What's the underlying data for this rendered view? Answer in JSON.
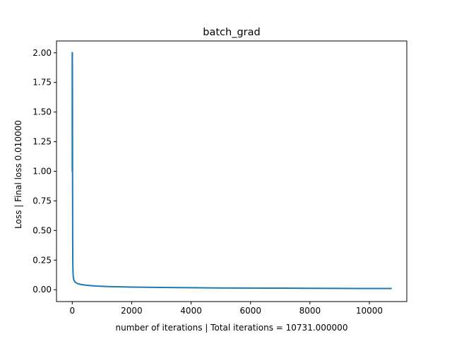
{
  "chart_data": {
    "type": "line",
    "title": "batch_grad",
    "xlabel": "number of iterations | Total iterations = 10731.000000",
    "ylabel": "Loss | Final loss 0.010000",
    "xlim": [
      -530,
      11260
    ],
    "ylim": [
      -0.1,
      2.1
    ],
    "xticks": [
      0,
      2000,
      4000,
      6000,
      8000,
      10000
    ],
    "xtick_labels": [
      "0",
      "2000",
      "4000",
      "6000",
      "8000",
      "10000"
    ],
    "yticks": [
      0.0,
      0.25,
      0.5,
      0.75,
      1.0,
      1.25,
      1.5,
      1.75,
      2.0
    ],
    "ytick_labels": [
      "0.00",
      "0.25",
      "0.50",
      "0.75",
      "1.00",
      "1.25",
      "1.50",
      "1.75",
      "2.00"
    ],
    "grid": false,
    "series": [
      {
        "color": "#1f77b4",
        "x": [
          0,
          1,
          2,
          3,
          4,
          5,
          6,
          7,
          8,
          9,
          10,
          12,
          15,
          20,
          30,
          50,
          80,
          120,
          200,
          300,
          500,
          800,
          1200,
          2000,
          3000,
          4000,
          5000,
          6000,
          7000,
          8000,
          9000,
          10000,
          10731
        ],
        "y": [
          2.0,
          1.0,
          2.0,
          1.0,
          2.0,
          1.0,
          1.9,
          1.1,
          1.7,
          1.2,
          1.3,
          0.8,
          0.4,
          0.2,
          0.12,
          0.085,
          0.07,
          0.06,
          0.05,
          0.044,
          0.037,
          0.031,
          0.027,
          0.022,
          0.019,
          0.017,
          0.015,
          0.014,
          0.013,
          0.012,
          0.011,
          0.0105,
          0.01
        ]
      }
    ]
  }
}
